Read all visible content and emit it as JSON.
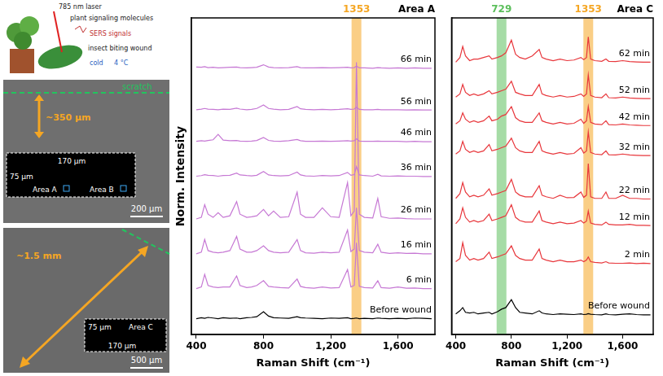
{
  "figure": {
    "schematic": {
      "laser": "785 nm laser",
      "molecules": "plant signaling molecules",
      "signals": "SERS signals",
      "wound": "insect biting wound",
      "cold": "cold",
      "temperature": "4 °C"
    },
    "micrograph_1": {
      "scratch": "scratch",
      "distance": "~350 μm",
      "width": "170 μm",
      "height": "75 μm",
      "area_a": "Area A",
      "area_b": "Area B",
      "scale_bar": "200 μm"
    },
    "micrograph_2": {
      "distance": "~1.5 mm",
      "height": "75 μm",
      "width": "170 μm",
      "area_c": "Area C",
      "scale_bar": "500 μm"
    }
  },
  "chart_data": [
    {
      "type": "line",
      "title": "Area A",
      "x_label": "Raman Shift (cm⁻¹)",
      "y_label": "Norm. Intensity",
      "annotations": [
        {
          "x": 1353,
          "label": "1353",
          "color": "#f5a623"
        }
      ],
      "x": [
        400,
        430,
        450,
        470,
        500,
        530,
        560,
        600,
        640,
        660,
        700,
        729,
        760,
        800,
        830,
        860,
        900,
        950,
        1000,
        1020,
        1050,
        1100,
        1150,
        1200,
        1250,
        1300,
        1320,
        1340,
        1353,
        1370,
        1400,
        1450,
        1480,
        1500,
        1550,
        1600,
        1650,
        1700,
        1750,
        1800
      ],
      "xlim": [
        370,
        1820
      ],
      "xticks": [
        400,
        800,
        1200,
        1600
      ],
      "ylim": [
        0,
        100
      ],
      "yticks": [],
      "tick_labels": "x",
      "grid": false,
      "series": [
        {
          "name": "66 min",
          "color": "#c678d4",
          "values": [
            84.5,
            84.4,
            84.6,
            84.3,
            84.4,
            84.2,
            84.3,
            84.4,
            84.5,
            84.3,
            84.2,
            84.3,
            84.4,
            85.2,
            84.5,
            84.3,
            84.2,
            84.3,
            84.6,
            84.3,
            84.2,
            84.2,
            84.3,
            84.2,
            84.3,
            84.4,
            84.2,
            84.3,
            84.8,
            84.2,
            84.2,
            84.1,
            84.3,
            84.2,
            84.1,
            84.2,
            84.1,
            84.2,
            84.1,
            84.1
          ]
        },
        {
          "name": "56 min",
          "color": "#c678d4",
          "values": [
            71,
            71.2,
            71.4,
            71.2,
            71.1,
            71,
            71.2,
            71.1,
            71.5,
            71.2,
            71,
            71.1,
            71.4,
            72.5,
            71.4,
            71.2,
            71,
            71.1,
            72,
            71.3,
            71.1,
            71,
            71.1,
            71,
            71.1,
            71.3,
            71.1,
            71.2,
            71.8,
            71.1,
            71,
            71,
            71.1,
            71,
            71,
            71,
            70.9,
            71,
            70.9,
            70.9
          ]
        },
        {
          "name": "46 min",
          "color": "#c678d4",
          "values": [
            61,
            61.2,
            61.1,
            61.3,
            61.5,
            63.2,
            61.4,
            61.2,
            61.3,
            61.1,
            61,
            61.1,
            61.3,
            62.2,
            61.3,
            61.1,
            61,
            61.2,
            61.6,
            61.2,
            61,
            61,
            61.1,
            61,
            61.1,
            61.2,
            61.1,
            61.2,
            61.8,
            61.1,
            61,
            61,
            61.1,
            61,
            61,
            61,
            60.9,
            61,
            60.9,
            60.9
          ]
        },
        {
          "name": "36 min",
          "color": "#c678d4",
          "values": [
            50,
            50.2,
            50.5,
            50.3,
            50.2,
            50,
            50.2,
            50.3,
            51,
            50.4,
            50.2,
            50.1,
            50.3,
            51.5,
            50.4,
            50.2,
            50.1,
            50.2,
            51.3,
            50.4,
            50.1,
            50,
            50.2,
            50.1,
            50.2,
            51.2,
            50.3,
            50.5,
            53,
            50.4,
            50.2,
            50,
            50.6,
            50.1,
            50,
            50.1,
            50,
            50,
            49.9,
            49.9
          ]
        },
        {
          "name": "26 min",
          "color": "#c678d4",
          "values": [
            36.5,
            37,
            41,
            38,
            37,
            38.5,
            37,
            37.5,
            42,
            38,
            37,
            37.2,
            37.5,
            39.5,
            37.5,
            39,
            37,
            37.2,
            45,
            38,
            37,
            37,
            40,
            37.2,
            37,
            48,
            37.5,
            39,
            86,
            38,
            37,
            36.8,
            43,
            37.2,
            36.7,
            36.8,
            36.6,
            36.5,
            36.5,
            36.5
          ]
        },
        {
          "name": "16 min",
          "color": "#c678d4",
          "values": [
            25.5,
            26,
            30,
            26.5,
            26,
            25.8,
            26,
            26.5,
            31,
            27,
            26,
            26,
            26.5,
            28,
            26.5,
            26,
            25.8,
            26,
            30,
            26.5,
            25.8,
            25.7,
            26,
            25.8,
            26,
            33,
            26.2,
            27,
            40,
            26.5,
            26,
            25.8,
            28.5,
            26,
            25.6,
            25.8,
            25.6,
            25.7,
            25.5,
            25.5
          ]
        },
        {
          "name": "6 min",
          "color": "#c678d4",
          "values": [
            14.5,
            15,
            19,
            15.5,
            15,
            14.8,
            15,
            15,
            18.5,
            15.5,
            14.8,
            15,
            15.5,
            17,
            15.2,
            15,
            14.8,
            14.7,
            17.5,
            15.2,
            14.8,
            14.6,
            15,
            14.7,
            14.8,
            20.5,
            15,
            15.5,
            29,
            15.2,
            14.8,
            14.7,
            17,
            14.8,
            14.6,
            15,
            14.6,
            14.7,
            14.5,
            14.5
          ]
        },
        {
          "name": "Before wound",
          "color": "#000000",
          "values": [
            5,
            5.3,
            5.1,
            5.4,
            5.2,
            5.0,
            5.3,
            5.1,
            5.2,
            5.0,
            5.3,
            5.4,
            5.6,
            7.2,
            5.8,
            5.3,
            5.2,
            5.1,
            5.6,
            5.3,
            5.2,
            5.1,
            5.0,
            5.2,
            5.1,
            5.3,
            5.0,
            5.1,
            5.2,
            5.0,
            5.1,
            5.0,
            5.2,
            5.1,
            5.0,
            5.1,
            5.0,
            5.2,
            5.1,
            5.0
          ]
        }
      ]
    },
    {
      "type": "line",
      "title": "Area C",
      "x_label": "Raman Shift (cm⁻¹)",
      "annotations": [
        {
          "x": 729,
          "label": "729",
          "color": "#5cbf5c"
        },
        {
          "x": 1353,
          "label": "1353",
          "color": "#f5a623"
        }
      ],
      "x": [
        400,
        430,
        450,
        470,
        500,
        530,
        560,
        600,
        640,
        660,
        700,
        729,
        760,
        800,
        830,
        860,
        900,
        950,
        1000,
        1020,
        1050,
        1100,
        1150,
        1200,
        1250,
        1300,
        1320,
        1340,
        1353,
        1370,
        1400,
        1450,
        1480,
        1500,
        1550,
        1600,
        1650,
        1700,
        1750,
        1800
      ],
      "xlim": [
        370,
        1820
      ],
      "xticks": [
        400,
        800,
        1200,
        1600
      ],
      "ylim": [
        0,
        100
      ],
      "yticks": [],
      "tick_labels": "x",
      "grid": false,
      "series": [
        {
          "name": "62 min",
          "color": "#e8373c",
          "values": [
            86,
            87.5,
            91,
            88,
            86.5,
            87,
            87,
            87.5,
            88,
            87,
            87.5,
            88,
            89,
            93,
            88.5,
            87.5,
            87,
            88,
            90,
            87.5,
            87,
            86.5,
            87,
            86.5,
            86.7,
            87.5,
            86.8,
            87.5,
            94,
            87,
            86.5,
            86.3,
            87,
            86.3,
            86.2,
            86.5,
            86.2,
            86.1,
            86,
            86
          ]
        },
        {
          "name": "52 min",
          "color": "#e8373c",
          "values": [
            75,
            76,
            79,
            76.5,
            75.5,
            76,
            75.5,
            76,
            77,
            76,
            76.5,
            77,
            77.5,
            80,
            76.5,
            76,
            75.5,
            75.5,
            79,
            76,
            75.5,
            75,
            75.5,
            75,
            75.2,
            76,
            75.2,
            76,
            82,
            75.5,
            75,
            74.8,
            76,
            74.8,
            74.7,
            75,
            74.7,
            74.6,
            74.5,
            74.5
          ]
        },
        {
          "name": "42 min",
          "color": "#e8373c",
          "values": [
            66.5,
            67.5,
            70,
            68,
            67,
            67.5,
            67,
            67.5,
            69,
            67.5,
            68,
            69,
            69.5,
            72,
            68.5,
            67.5,
            67,
            67,
            70,
            67.5,
            67,
            66.5,
            67,
            66.5,
            66.7,
            68,
            66.7,
            67.5,
            72,
            67,
            66.5,
            66.3,
            67.5,
            66.3,
            66.2,
            66.5,
            66.2,
            66.1,
            66,
            66
          ]
        },
        {
          "name": "32 min",
          "color": "#e8373c",
          "values": [
            57,
            58,
            61,
            58.5,
            57.5,
            58,
            57.5,
            58,
            60,
            58,
            58.5,
            59,
            59.5,
            62,
            59,
            58,
            57.5,
            57.5,
            61,
            58,
            57.5,
            57,
            57.5,
            57,
            57.2,
            59,
            57.3,
            58,
            64,
            57.5,
            57,
            56.8,
            58,
            56.8,
            56.7,
            57,
            56.7,
            56.6,
            56.5,
            56.5
          ]
        },
        {
          "name": "22 min",
          "color": "#e8373c",
          "values": [
            43,
            44.5,
            48,
            45,
            43.5,
            44,
            43.5,
            44,
            46,
            44,
            44.5,
            45,
            45.5,
            49,
            45,
            44,
            43.5,
            43.5,
            47,
            44,
            43.5,
            43,
            44,
            43.2,
            43.3,
            45,
            43.3,
            44,
            54,
            43.5,
            43,
            43,
            45,
            43,
            43,
            44,
            43,
            43,
            42.8,
            42.8
          ]
        },
        {
          "name": "12 min",
          "color": "#e8373c",
          "values": [
            35,
            36.5,
            40,
            37,
            35.5,
            36,
            35.5,
            36,
            38,
            36,
            36.5,
            37,
            37.5,
            41,
            37,
            36,
            35.5,
            35.5,
            39,
            36,
            35.5,
            35,
            35.5,
            35,
            35.2,
            36,
            35.2,
            35.8,
            39,
            35.2,
            34.8,
            34.6,
            35.5,
            34.8,
            34.6,
            34.6,
            34.8,
            34.5,
            34.5,
            34.4
          ]
        },
        {
          "name": "2 min",
          "color": "#e8373c",
          "values": [
            23,
            24,
            29,
            25,
            23.5,
            24,
            23.5,
            24,
            26,
            24,
            24.5,
            25,
            25.5,
            28,
            25,
            24,
            23.5,
            23.5,
            27,
            24,
            23.5,
            23,
            23.5,
            23,
            23,
            23.5,
            23,
            23.5,
            24.5,
            23,
            22.8,
            22.6,
            23,
            22.6,
            22.5,
            22.5,
            22.6,
            22.4,
            22.5,
            22.4
          ]
        },
        {
          "name": "Before wound",
          "color": "#000000",
          "values": [
            6.5,
            7.5,
            8.5,
            7,
            6.8,
            7,
            6.5,
            6.8,
            7,
            6.5,
            7.2,
            8,
            8.5,
            11,
            8.5,
            7,
            6.8,
            6.5,
            7.5,
            6.8,
            6.5,
            6.3,
            6.5,
            6.4,
            6.3,
            6.5,
            6.3,
            6.4,
            6.6,
            6.4,
            6.3,
            6.2,
            6.5,
            6.3,
            6.2,
            6.4,
            6.5,
            6.3,
            6.2,
            6.2
          ]
        }
      ]
    }
  ]
}
